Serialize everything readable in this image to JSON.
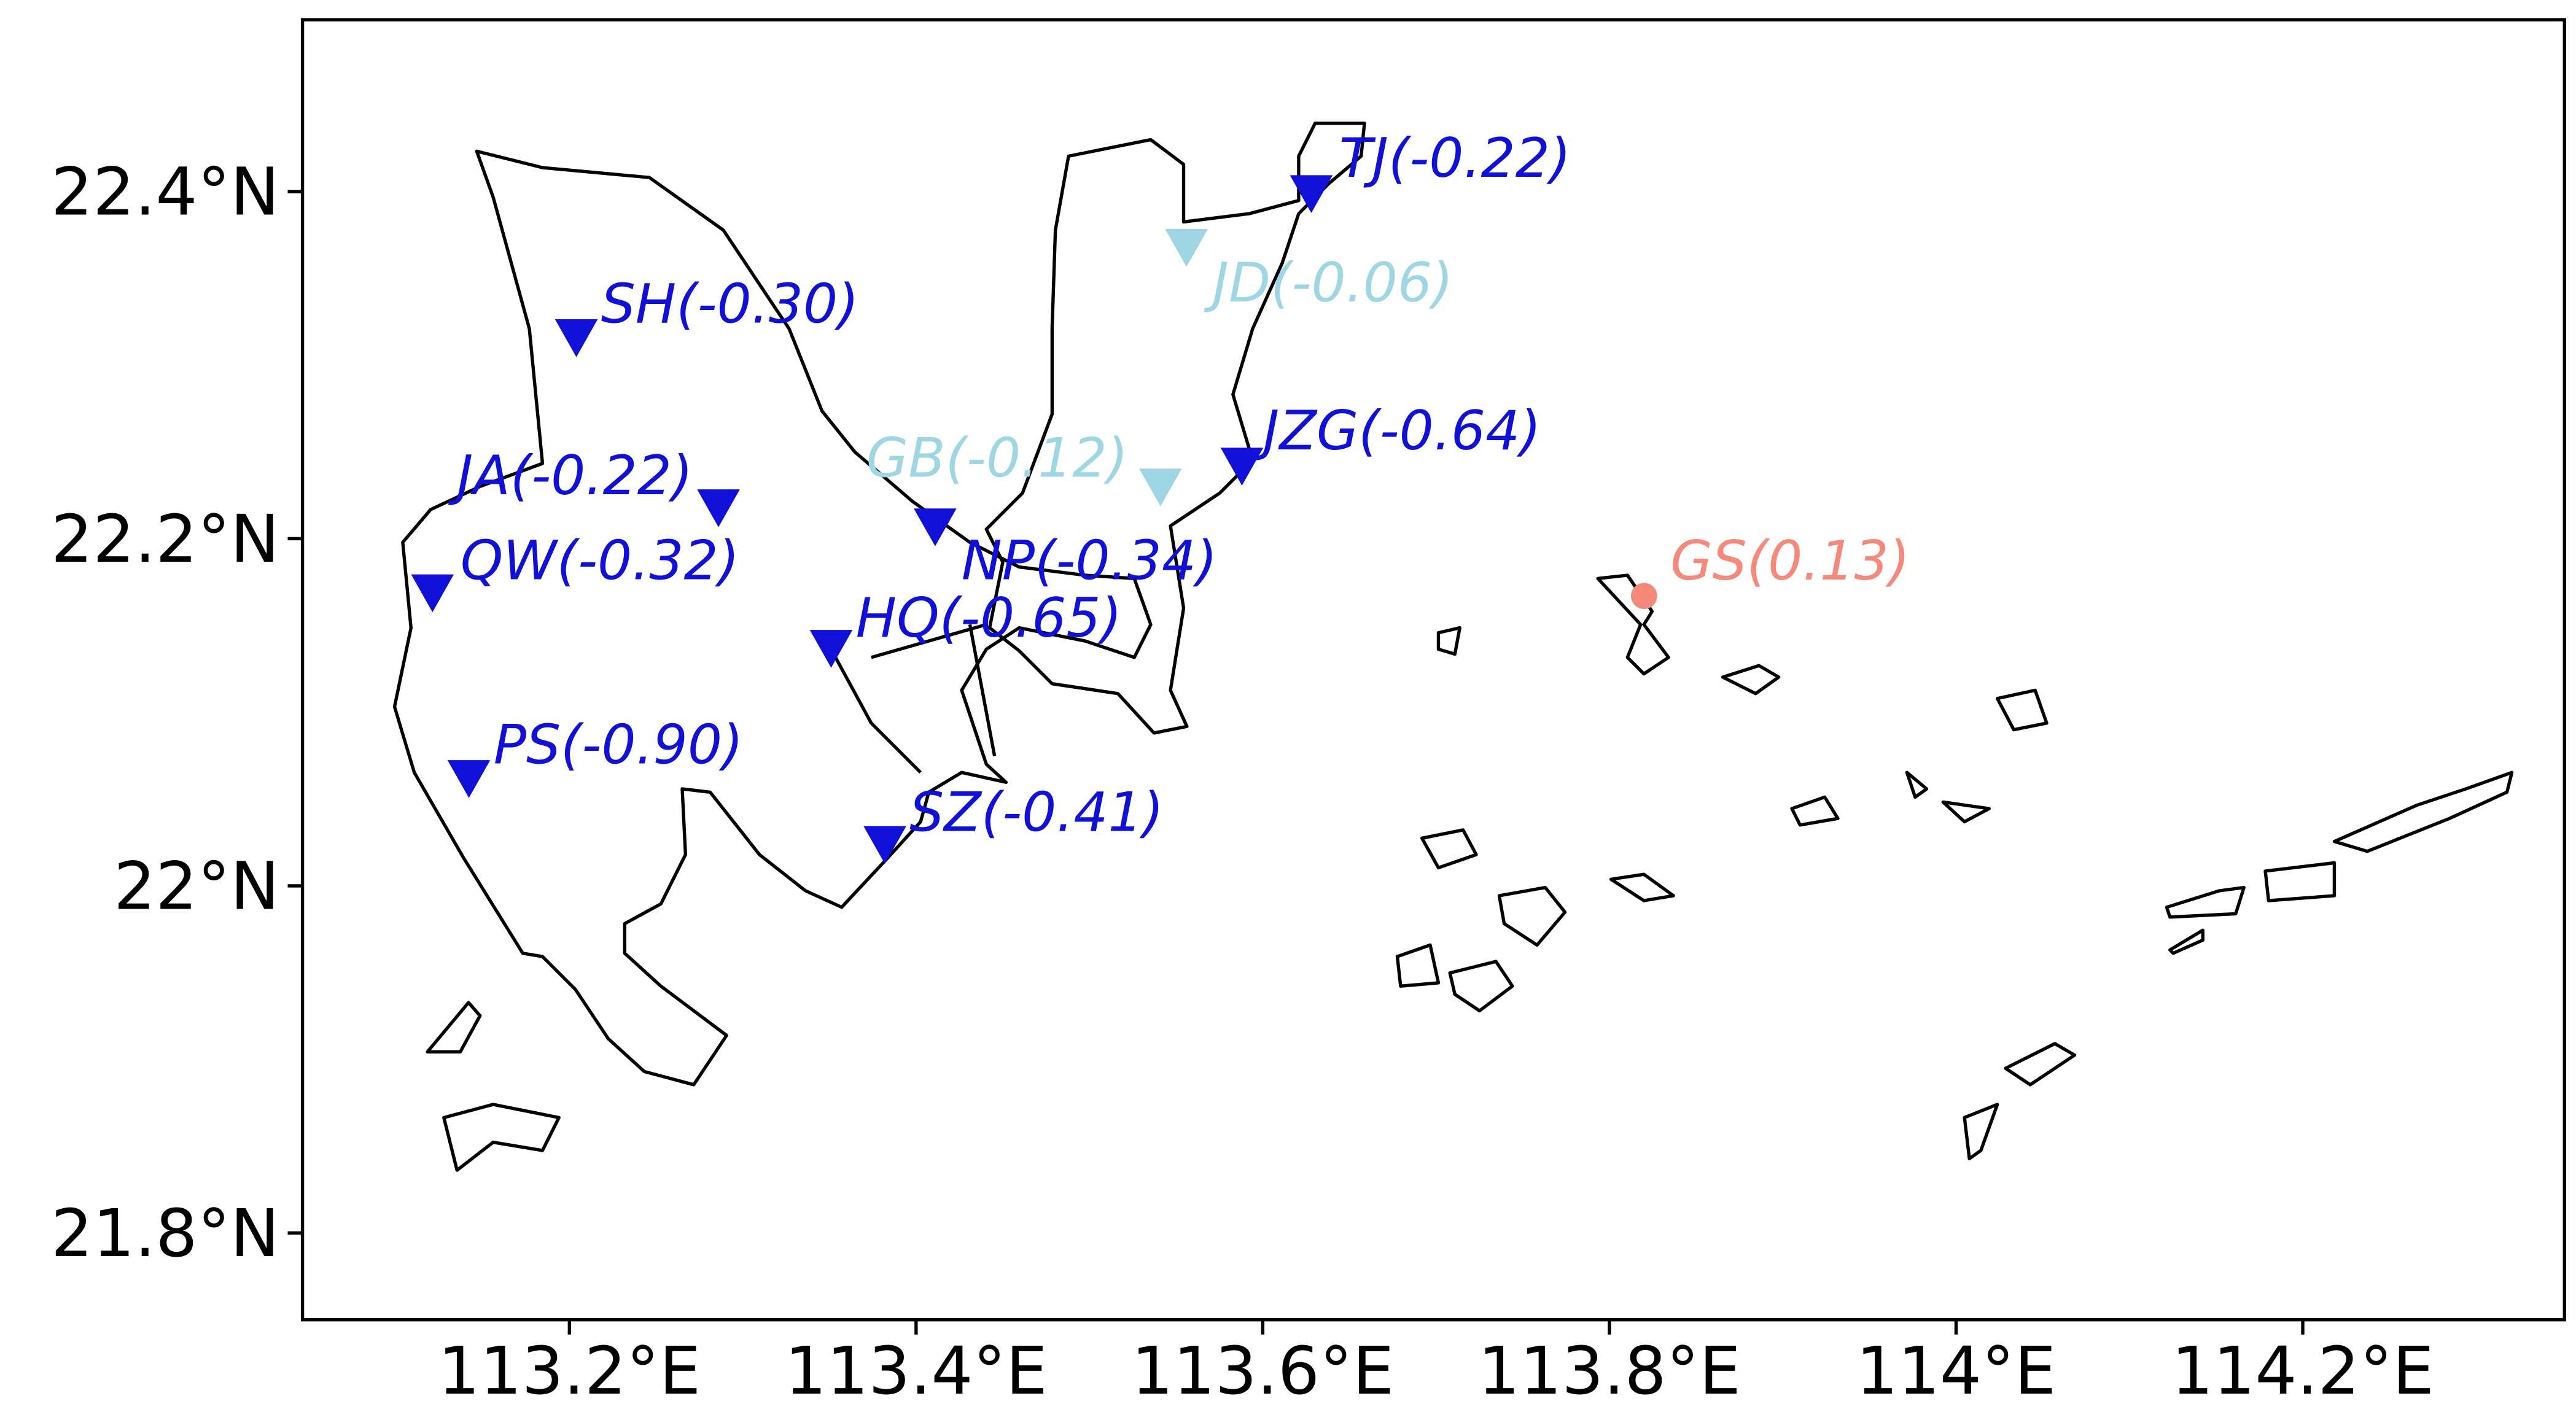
{
  "chart_data": {
    "type": "map",
    "xlim": [
      113.046,
      114.351
    ],
    "ylim": [
      21.75,
      22.499
    ],
    "xticks": [
      {
        "value": 113.2,
        "label": "113.2°E"
      },
      {
        "value": 113.4,
        "label": "113.4°E"
      },
      {
        "value": 113.6,
        "label": "113.6°E"
      },
      {
        "value": 113.8,
        "label": "113.8°E"
      },
      {
        "value": 114,
        "label": "114°E"
      },
      {
        "value": 114.2,
        "label": "114.2°E"
      }
    ],
    "yticks": [
      {
        "value": 21.8,
        "label": "21.8°N"
      },
      {
        "value": 22,
        "label": "22°N"
      },
      {
        "value": 22.2,
        "label": "22.2°N"
      },
      {
        "value": 22.4,
        "label": "22.4°N"
      }
    ],
    "stations": {
      "labels": [
        "SH(-0.30)",
        "JA(-0.22)",
        "QW(-0.32)",
        "PS(-0.90)",
        "HQ(-0.65)",
        "NP(-0.34)",
        "SZ(-0.41)",
        "GB(-0.12)",
        "JZG(-0.64)",
        "JD(-0.06)",
        "TJ(-0.22)",
        "GS(0.13)"
      ],
      "lon": [
        113.204,
        113.286,
        113.121,
        113.142,
        113.351,
        113.411,
        113.382,
        113.541,
        113.588,
        113.556,
        113.628,
        113.82
      ],
      "lat": [
        22.316,
        22.218,
        22.169,
        22.062,
        22.137,
        22.207,
        22.024,
        22.23,
        22.242,
        22.368,
        22.399,
        22.167
      ],
      "values": [
        -0.3,
        -0.22,
        -0.32,
        -0.9,
        -0.65,
        -0.34,
        -0.41,
        -0.12,
        -0.64,
        -0.06,
        -0.22,
        0.13
      ],
      "colors": [
        "#1010d8",
        "#1010d8",
        "#1010d8",
        "#1010d8",
        "#1010d8",
        "#1010d8",
        "#1010d8",
        "#9fd6e3",
        "#1010d8",
        "#9fd6e3",
        "#1010d8",
        "#f58a7c"
      ]
    }
  }
}
